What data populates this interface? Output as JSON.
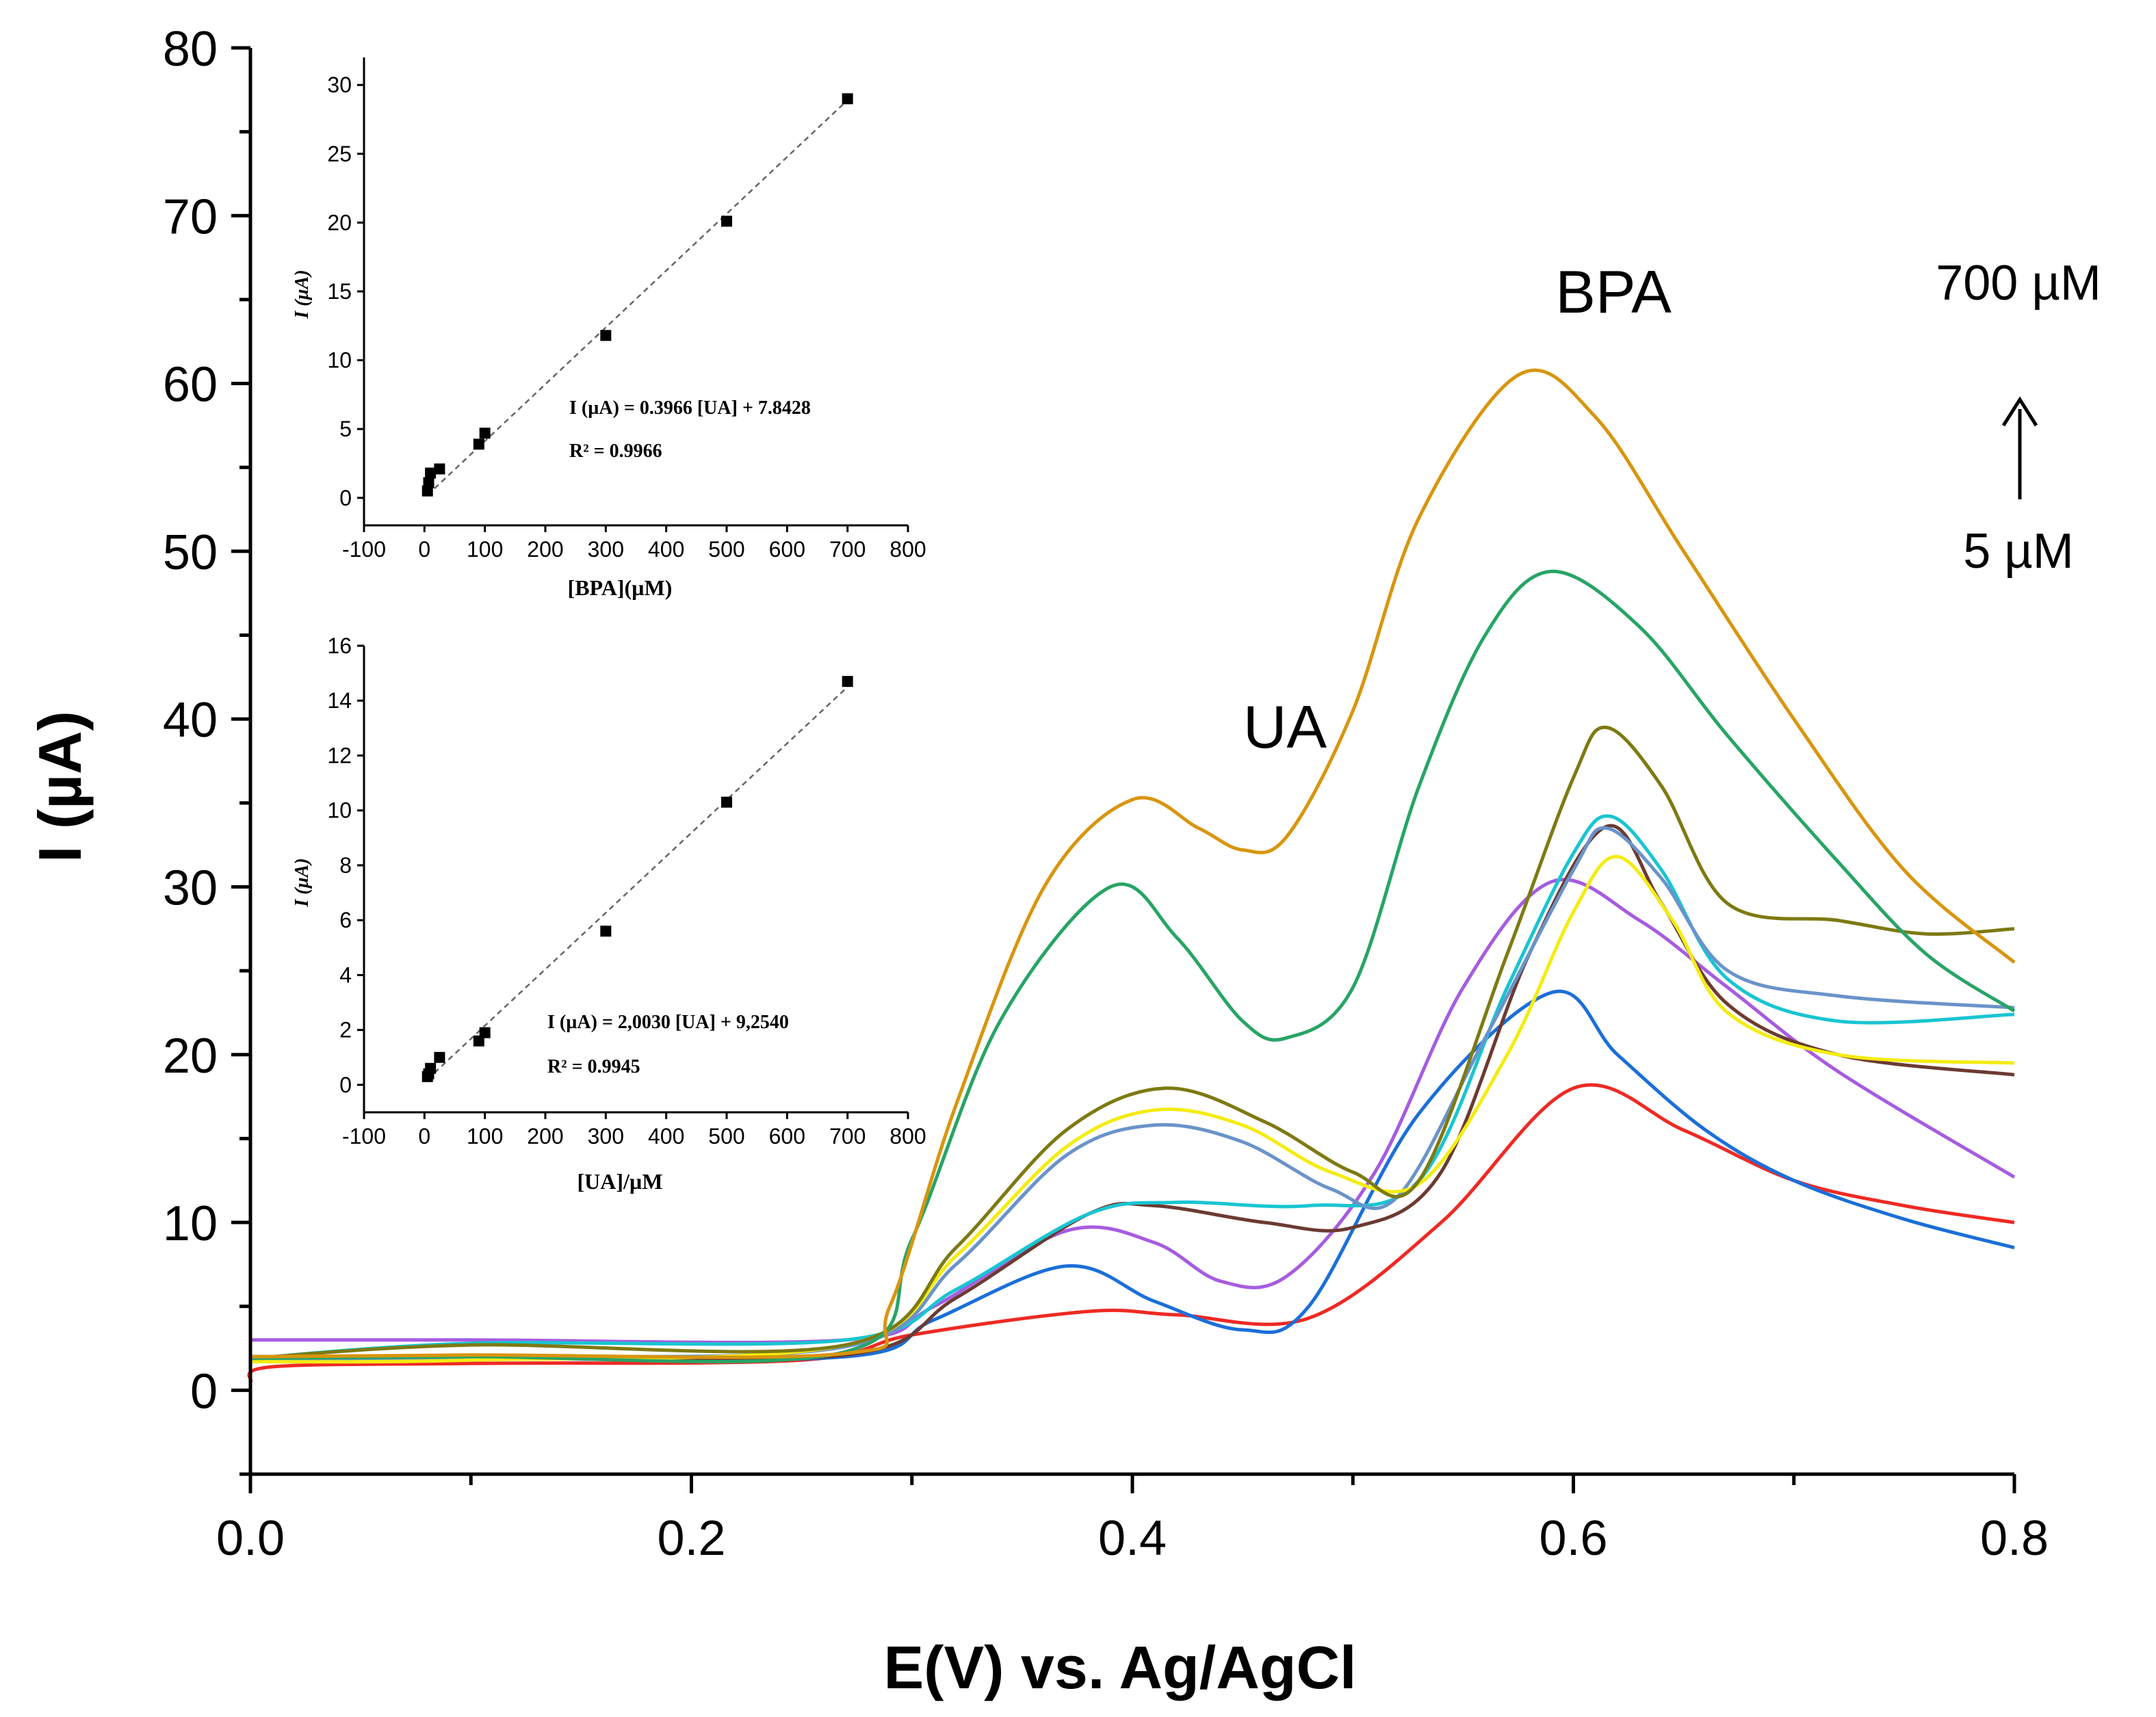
{
  "chart_data": [
    {
      "id": "main",
      "type": "line",
      "title": "",
      "xlabel": "E(V) vs. Ag/AgCl",
      "ylabel": "I (µA)",
      "xlim": [
        0.0,
        0.8
      ],
      "ylim": [
        -5,
        80
      ],
      "xticks": [
        0.0,
        0.2,
        0.4,
        0.6,
        0.8
      ],
      "xtick_labels": [
        "0.0",
        "0.2",
        "0.4",
        "0.6",
        "0.8"
      ],
      "yticks": [
        0,
        10,
        20,
        30,
        40,
        50,
        60,
        70,
        80
      ],
      "ytick_labels": [
        "0",
        "10",
        "20",
        "30",
        "40",
        "50",
        "60",
        "70",
        "80"
      ],
      "grid": false,
      "annotations": [
        {
          "label": "UA",
          "x": 0.467,
          "y": 38.5
        },
        {
          "label": "BPA",
          "x": 0.618,
          "y": 65.5
        },
        {
          "label": "700 µM",
          "x": 0.805,
          "y": 66.3
        },
        {
          "label": "5 µM",
          "x": 0.805,
          "y": 49.0
        }
      ],
      "arrow": {
        "from_y": 53.5,
        "to_y": 60.0,
        "x": 0.804
      },
      "series": [
        {
          "name": "red",
          "color": "#ee2a24",
          "points": [
            [
              0,
              0.5
            ],
            [
              0.01,
              1.4
            ],
            [
              0.1,
              1.6
            ],
            [
              0.25,
              1.8
            ],
            [
              0.3,
              3.3
            ],
            [
              0.38,
              4.7
            ],
            [
              0.42,
              4.5
            ],
            [
              0.48,
              4.3
            ],
            [
              0.54,
              10.0
            ],
            [
              0.6,
              18.0
            ],
            [
              0.65,
              15.5
            ],
            [
              0.7,
              12.5
            ],
            [
              0.75,
              11.0
            ],
            [
              0.8,
              10.0
            ]
          ]
        },
        {
          "name": "blue",
          "color": "#1b6fd8",
          "points": [
            [
              0,
              1.9
            ],
            [
              0.1,
              1.9
            ],
            [
              0.27,
              2.0
            ],
            [
              0.31,
              4.2
            ],
            [
              0.37,
              7.4
            ],
            [
              0.41,
              5.3
            ],
            [
              0.45,
              3.6
            ],
            [
              0.48,
              5.0
            ],
            [
              0.53,
              16.5
            ],
            [
              0.59,
              23.7
            ],
            [
              0.62,
              20.0
            ],
            [
              0.66,
              15.5
            ],
            [
              0.7,
              12.5
            ],
            [
              0.75,
              10.2
            ],
            [
              0.8,
              8.5
            ]
          ]
        },
        {
          "name": "purple",
          "color": "#a65ce0",
          "points": [
            [
              0,
              3.0
            ],
            [
              0.1,
              3.0
            ],
            [
              0.27,
              3.0
            ],
            [
              0.31,
              5.0
            ],
            [
              0.37,
              9.5
            ],
            [
              0.41,
              8.8
            ],
            [
              0.44,
              6.5
            ],
            [
              0.47,
              6.8
            ],
            [
              0.51,
              13.0
            ],
            [
              0.55,
              24.0
            ],
            [
              0.59,
              30.3
            ],
            [
              0.63,
              28.0
            ],
            [
              0.67,
              24.0
            ],
            [
              0.72,
              19.0
            ],
            [
              0.8,
              12.7
            ]
          ]
        },
        {
          "name": "brown",
          "color": "#6b3a32",
          "points": [
            [
              0,
              2.0
            ],
            [
              0.1,
              2.0
            ],
            [
              0.27,
              2.1
            ],
            [
              0.32,
              5.5
            ],
            [
              0.38,
              10.5
            ],
            [
              0.41,
              11.0
            ],
            [
              0.46,
              10.0
            ],
            [
              0.5,
              9.7
            ],
            [
              0.54,
              13.0
            ],
            [
              0.58,
              26.0
            ],
            [
              0.615,
              33.6
            ],
            [
              0.64,
              29.0
            ],
            [
              0.67,
              23.0
            ],
            [
              0.72,
              20.0
            ],
            [
              0.8,
              18.8
            ]
          ]
        },
        {
          "name": "cyan",
          "color": "#19c5d1",
          "points": [
            [
              0,
              1.9
            ],
            [
              0.1,
              2.8
            ],
            [
              0.27,
              3.0
            ],
            [
              0.32,
              6.0
            ],
            [
              0.38,
              10.5
            ],
            [
              0.42,
              11.2
            ],
            [
              0.48,
              11.0
            ],
            [
              0.53,
              12.5
            ],
            [
              0.57,
              24.0
            ],
            [
              0.6,
              32.0
            ],
            [
              0.617,
              34.2
            ],
            [
              0.64,
              31.0
            ],
            [
              0.67,
              24.5
            ],
            [
              0.72,
              22.0
            ],
            [
              0.8,
              22.4
            ]
          ]
        },
        {
          "name": "slate-blue",
          "color": "#6a93c9",
          "points": [
            [
              0,
              1.8
            ],
            [
              0.1,
              2.0
            ],
            [
              0.27,
              2.6
            ],
            [
              0.32,
              7.5
            ],
            [
              0.37,
              14.0
            ],
            [
              0.41,
              15.8
            ],
            [
              0.45,
              14.8
            ],
            [
              0.49,
              12.0
            ],
            [
              0.52,
              11.5
            ],
            [
              0.56,
              21.0
            ],
            [
              0.6,
              31.0
            ],
            [
              0.615,
              33.5
            ],
            [
              0.64,
              30.5
            ],
            [
              0.67,
              25.0
            ],
            [
              0.72,
              23.5
            ],
            [
              0.8,
              22.8
            ]
          ]
        },
        {
          "name": "yellow",
          "color": "#f4ec12",
          "points": [
            [
              0,
              1.7
            ],
            [
              0.1,
              1.8
            ],
            [
              0.27,
              2.7
            ],
            [
              0.32,
              8.0
            ],
            [
              0.37,
              14.5
            ],
            [
              0.41,
              16.7
            ],
            [
              0.45,
              15.8
            ],
            [
              0.49,
              13.0
            ],
            [
              0.53,
              12.3
            ],
            [
              0.57,
              20.0
            ],
            [
              0.6,
              28.5
            ],
            [
              0.62,
              31.8
            ],
            [
              0.645,
              28.0
            ],
            [
              0.67,
              22.5
            ],
            [
              0.72,
              20.0
            ],
            [
              0.8,
              19.5
            ]
          ]
        },
        {
          "name": "olive",
          "color": "#7d7a12",
          "points": [
            [
              0,
              1.9
            ],
            [
              0.1,
              2.7
            ],
            [
              0.27,
              2.7
            ],
            [
              0.32,
              8.5
            ],
            [
              0.37,
              15.5
            ],
            [
              0.415,
              18.0
            ],
            [
              0.46,
              16.0
            ],
            [
              0.5,
              13.0
            ],
            [
              0.53,
              12.5
            ],
            [
              0.57,
              26.0
            ],
            [
              0.6,
              36.5
            ],
            [
              0.615,
              39.5
            ],
            [
              0.64,
              36.0
            ],
            [
              0.67,
              29.0
            ],
            [
              0.72,
              28.0
            ],
            [
              0.76,
              27.2
            ],
            [
              0.8,
              27.5
            ]
          ]
        },
        {
          "name": "green",
          "color": "#28a466",
          "points": [
            [
              0,
              1.9
            ],
            [
              0.1,
              2.0
            ],
            [
              0.27,
              2.3
            ],
            [
              0.3,
              9.0
            ],
            [
              0.34,
              22.0
            ],
            [
              0.39,
              30.0
            ],
            [
              0.42,
              27.0
            ],
            [
              0.45,
              22.0
            ],
            [
              0.47,
              21.0
            ],
            [
              0.5,
              24.0
            ],
            [
              0.53,
              36.0
            ],
            [
              0.56,
              45.0
            ],
            [
              0.59,
              48.8
            ],
            [
              0.63,
              45.5
            ],
            [
              0.67,
              39.0
            ],
            [
              0.72,
              31.5
            ],
            [
              0.76,
              26.0
            ],
            [
              0.8,
              22.6
            ]
          ]
        },
        {
          "name": "orange",
          "color": "#d8950e",
          "points": [
            [
              0,
              2.0
            ],
            [
              0.1,
              2.1
            ],
            [
              0.27,
              2.2
            ],
            [
              0.29,
              5.0
            ],
            [
              0.32,
              17.0
            ],
            [
              0.36,
              30.0
            ],
            [
              0.4,
              35.2
            ],
            [
              0.43,
              33.5
            ],
            [
              0.45,
              32.2
            ],
            [
              0.47,
              33.0
            ],
            [
              0.5,
              40.5
            ],
            [
              0.53,
              52.0
            ],
            [
              0.575,
              60.5
            ],
            [
              0.61,
              58.0
            ],
            [
              0.65,
              50.0
            ],
            [
              0.7,
              40.0
            ],
            [
              0.75,
              31.0
            ],
            [
              0.8,
              25.5
            ]
          ]
        }
      ]
    },
    {
      "id": "inset-bpa",
      "type": "scatter",
      "xlabel": "[BPA](µM)",
      "ylabel": "I (µA)",
      "xlim": [
        -100,
        800
      ],
      "ylim": [
        -2,
        32
      ],
      "xticks": [
        -100,
        0,
        100,
        200,
        300,
        400,
        500,
        600,
        700,
        800
      ],
      "xtick_labels": [
        "-100",
        "0",
        "100",
        "200",
        "300",
        "400",
        "500",
        "600",
        "700",
        "800"
      ],
      "yticks": [
        0,
        5,
        10,
        15,
        20,
        25,
        30
      ],
      "ytick_labels": [
        "0",
        "5",
        "10",
        "15",
        "20",
        "25",
        "30"
      ],
      "points": [
        [
          5,
          0.5
        ],
        [
          7,
          1.1
        ],
        [
          10,
          1.8
        ],
        [
          25,
          2.1
        ],
        [
          90,
          3.9
        ],
        [
          100,
          4.7
        ],
        [
          300,
          11.8
        ],
        [
          500,
          20.1
        ],
        [
          700,
          29.0
        ]
      ],
      "fit_line": [
        [
          5,
          0.2
        ],
        [
          700,
          28.9
        ]
      ],
      "equation": "I (µA) = 0.3966 [UA] + 7.8428",
      "r2": "R² = 0.9966"
    },
    {
      "id": "inset-ua",
      "type": "scatter",
      "xlabel": "[UA]/µM",
      "ylabel": "I (µA)",
      "xlim": [
        -100,
        800
      ],
      "ylim": [
        -1,
        16
      ],
      "xticks": [
        -100,
        0,
        100,
        200,
        300,
        400,
        500,
        600,
        700,
        800
      ],
      "xtick_labels": [
        "-100",
        "0",
        "100",
        "200",
        "300",
        "400",
        "500",
        "600",
        "700",
        "800"
      ],
      "yticks": [
        0,
        2,
        4,
        6,
        8,
        10,
        12,
        14,
        16
      ],
      "ytick_labels": [
        "0",
        "2",
        "4",
        "6",
        "8",
        "10",
        "12",
        "14",
        "16"
      ],
      "points": [
        [
          5,
          0.3
        ],
        [
          7,
          0.4
        ],
        [
          10,
          0.6
        ],
        [
          25,
          1.0
        ],
        [
          90,
          1.6
        ],
        [
          100,
          1.9
        ],
        [
          300,
          5.6
        ],
        [
          500,
          10.3
        ],
        [
          700,
          14.7
        ]
      ],
      "fit_line": [
        [
          5,
          0.2
        ],
        [
          700,
          14.5
        ]
      ],
      "equation": "I (µA) = 2,0030 [UA] + 9,2540",
      "r2": "R² = 0.9945"
    }
  ]
}
